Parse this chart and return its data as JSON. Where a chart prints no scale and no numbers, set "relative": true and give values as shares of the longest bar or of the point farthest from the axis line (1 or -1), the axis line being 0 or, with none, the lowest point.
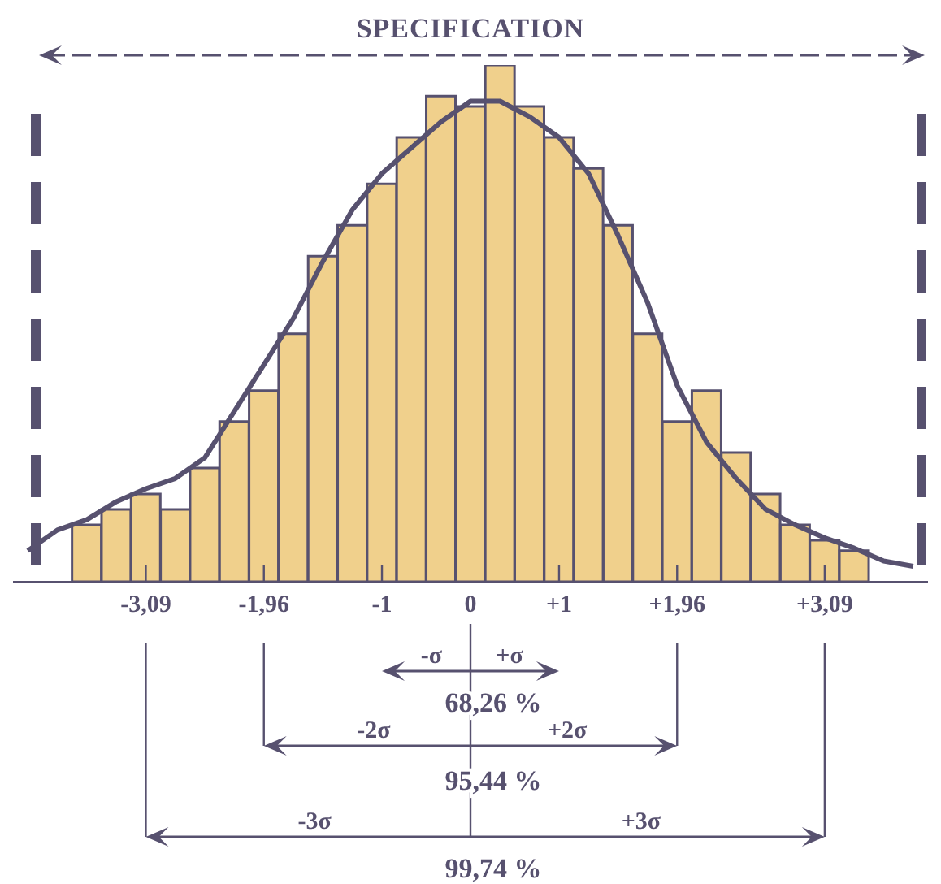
{
  "chart_data": {
    "type": "bar",
    "title": "SPECIFICATION",
    "relative": true,
    "categories": [
      null,
      null,
      null,
      null,
      "-3,09",
      null,
      null,
      null,
      "-1,96",
      null,
      null,
      null,
      "-1",
      null,
      null,
      "0",
      null,
      null,
      "+1",
      null,
      null,
      null,
      "+1,96",
      null,
      null,
      null,
      null,
      "+3,09",
      null,
      null,
      null
    ],
    "series": [
      {
        "color": "#f0d08c",
        "values": [
          null,
          null,
          0.11,
          0.14,
          0.17,
          0.14,
          0.22,
          0.31,
          0.37,
          0.48,
          0.63,
          0.69,
          0.77,
          0.86,
          0.94,
          0.92,
          1,
          0.92,
          0.86,
          0.8,
          0.69,
          0.48,
          0.31,
          0.37,
          0.25,
          0.17,
          0.11,
          0.08,
          0.06,
          null,
          null
        ]
      },
      {
        "type": "line",
        "color": "#57516f",
        "values": [
          0.06,
          0.1,
          0.12,
          0.155,
          0.18,
          0.2,
          0.24,
          0.33,
          0.42,
          0.51,
          0.62,
          0.72,
          0.79,
          0.84,
          0.89,
          0.93,
          0.93,
          0.9,
          0.86,
          0.79,
          0.67,
          0.54,
          0.38,
          0.27,
          0.2,
          0.14,
          0.11,
          0.085,
          0.065,
          0.04,
          0.03
        ]
      }
    ],
    "marker": "none",
    "annotations": [
      "-σ",
      "+σ",
      "68,26 %",
      "-2σ",
      "+2σ",
      "95,44 %",
      "-3σ",
      "+3σ",
      "99,74 %"
    ]
  }
}
